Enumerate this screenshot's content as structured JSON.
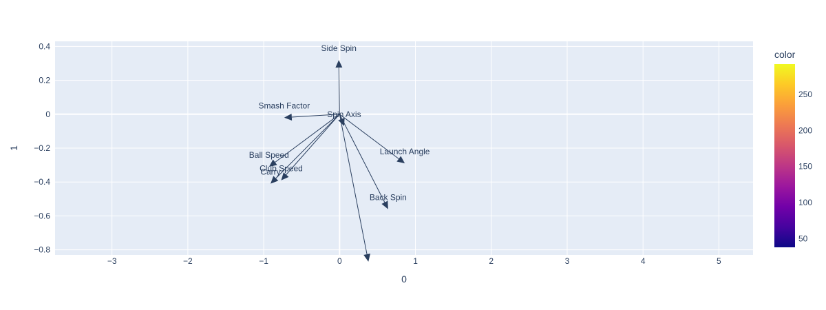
{
  "chart_data": {
    "type": "biplot",
    "xlabel": "0",
    "ylabel": "1",
    "xlim": [
      -3.75,
      5.45
    ],
    "ylim": [
      -0.83,
      0.43
    ],
    "x_ticks": [
      -3,
      -2,
      -1,
      0,
      1,
      2,
      3,
      4,
      5
    ],
    "y_ticks": [
      0.4,
      0.2,
      0,
      -0.2,
      -0.4,
      -0.6,
      -0.8
    ],
    "grid": true,
    "origin": [
      0,
      0
    ],
    "loadings": [
      {
        "name": "Side Spin",
        "x": -0.01,
        "y": 0.32
      },
      {
        "name": "Smash Factor",
        "x": -0.73,
        "y": -0.02
      },
      {
        "name": "Spin Axis",
        "x": 0.06,
        "y": -0.07
      },
      {
        "name": "Ball Speed",
        "x": -0.93,
        "y": -0.31
      },
      {
        "name": "Launch Angle",
        "x": 0.86,
        "y": -0.29
      },
      {
        "name": "Club Speed",
        "x": -0.77,
        "y": -0.39
      },
      {
        "name": "Carry",
        "x": -0.91,
        "y": -0.41
      },
      {
        "name": "Back Spin",
        "x": 0.64,
        "y": -0.56
      },
      {
        "name": "",
        "x": 0.38,
        "y": -0.87
      }
    ],
    "colorbar": {
      "title": "color",
      "min": 38,
      "max": 292,
      "ticks": [
        50,
        100,
        150,
        200,
        250
      ],
      "colorscale": [
        "#0d0887",
        "#46039f",
        "#7201a8",
        "#9c179e",
        "#bd3786",
        "#d8576b",
        "#ed7953",
        "#fb9f3a",
        "#fdca26",
        "#f0f921"
      ]
    },
    "colors": {
      "plot_bg": "#e5ecf6",
      "grid": "#ffffff",
      "arrow": "#2a3f5f",
      "text": "#2a3f5f"
    }
  }
}
